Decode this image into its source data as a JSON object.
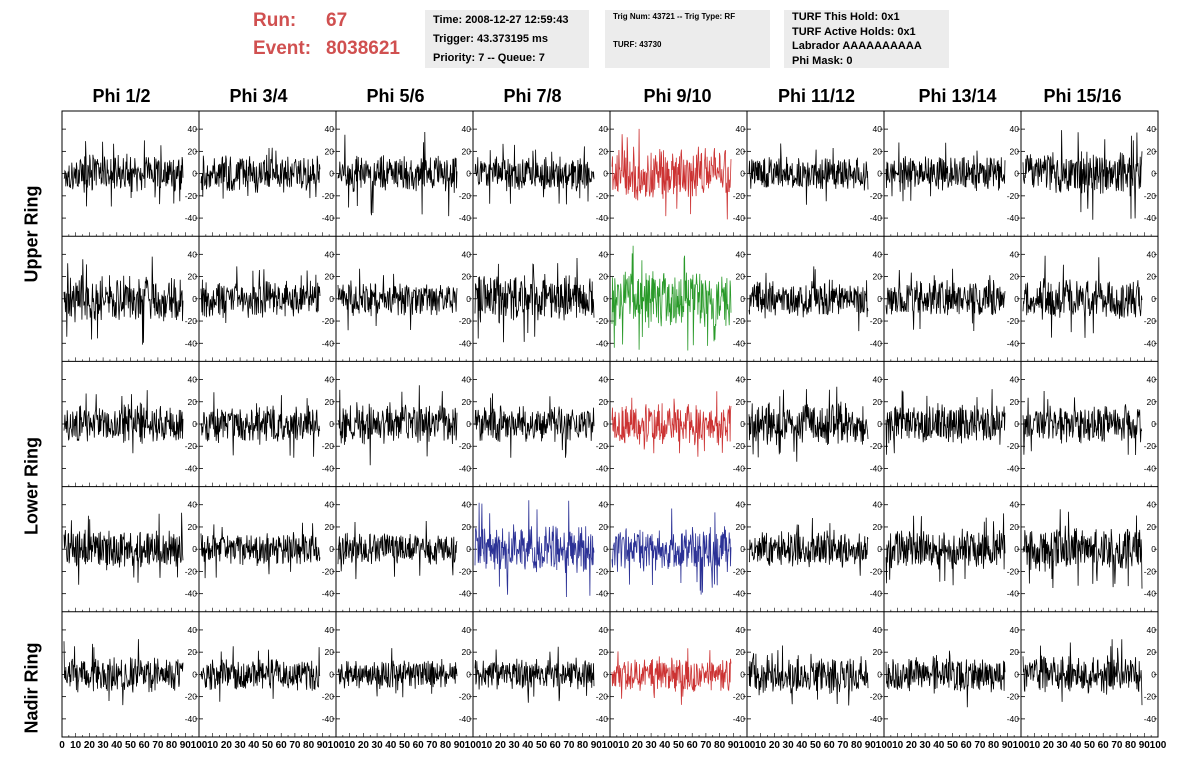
{
  "header": {
    "run_label": "Run:",
    "run_value": "67",
    "event_label": "Event:",
    "event_value": "8038621"
  },
  "info": {
    "time": "Time: 2008-12-27 12:59:43",
    "trigger": "Trigger: 43.373195 ms",
    "priority": "Priority: 7 -- Queue: 7",
    "trig": "Trig Num: 43721 -- Trig Type: RF",
    "turf": "TURF: 43730",
    "turf_hold": "TURF This Hold: 0x1",
    "turf_active": "TURF Active Holds: 0x1",
    "labrador": "Labrador AAAAAAAAAA",
    "phi_mask": "Phi Mask: 0"
  },
  "columns": [
    "Phi 1/2",
    "Phi 3/4",
    "Phi 5/6",
    "Phi 7/8",
    "Phi 9/10",
    "Phi 11/12",
    "Phi 13/14",
    "Phi 15/16"
  ],
  "rows": [
    "Upper Ring",
    "Upper Ring",
    "Lower Ring",
    "Lower Ring",
    "Nadir Ring"
  ],
  "ring_labels": [
    "Upper Ring",
    "Lower Ring",
    "Nadir Ring"
  ],
  "colors": {
    "default": "#000000",
    "red": "#cc3333",
    "green": "#2a9a2a",
    "blue": "#2c3296"
  },
  "chart_data": {
    "type": "line",
    "xlim": [
      0,
      100
    ],
    "ylim": [
      -50,
      50
    ],
    "x_ticks": [
      0,
      10,
      20,
      30,
      40,
      50,
      60,
      70,
      80,
      90,
      100
    ],
    "y_ticks": [
      -40,
      -20,
      0,
      20,
      40
    ],
    "x_tick_labels": [
      "0",
      "10",
      "20",
      "30",
      "40",
      "50",
      "60",
      "70",
      "80",
      "90",
      "100"
    ],
    "y_tick_labels": [
      "-40",
      "-20",
      "0",
      "20",
      "40"
    ],
    "samples": 260,
    "panels": [
      {
        "row": 0,
        "col": 0,
        "color": "default",
        "amplitude": 14,
        "max": 30
      },
      {
        "row": 0,
        "col": 1,
        "color": "default",
        "amplitude": 14,
        "max": 28
      },
      {
        "row": 0,
        "col": 2,
        "color": "default",
        "amplitude": 14,
        "max": 40
      },
      {
        "row": 0,
        "col": 3,
        "color": "default",
        "amplitude": 13,
        "max": 28
      },
      {
        "row": 0,
        "col": 4,
        "color": "red",
        "amplitude": 20,
        "max": 42
      },
      {
        "row": 0,
        "col": 5,
        "color": "default",
        "amplitude": 13,
        "max": 30
      },
      {
        "row": 0,
        "col": 6,
        "color": "default",
        "amplitude": 13,
        "max": 28
      },
      {
        "row": 0,
        "col": 7,
        "color": "default",
        "amplitude": 16,
        "max": 42
      },
      {
        "row": 1,
        "col": 0,
        "color": "default",
        "amplitude": 18,
        "max": 42
      },
      {
        "row": 1,
        "col": 1,
        "color": "default",
        "amplitude": 14,
        "max": 30
      },
      {
        "row": 1,
        "col": 2,
        "color": "default",
        "amplitude": 13,
        "max": 30
      },
      {
        "row": 1,
        "col": 3,
        "color": "default",
        "amplitude": 18,
        "max": 42
      },
      {
        "row": 1,
        "col": 4,
        "color": "green",
        "amplitude": 22,
        "max": 48
      },
      {
        "row": 1,
        "col": 5,
        "color": "default",
        "amplitude": 14,
        "max": 32
      },
      {
        "row": 1,
        "col": 6,
        "color": "default",
        "amplitude": 14,
        "max": 30
      },
      {
        "row": 1,
        "col": 7,
        "color": "default",
        "amplitude": 16,
        "max": 40
      },
      {
        "row": 2,
        "col": 0,
        "color": "default",
        "amplitude": 15,
        "max": 32
      },
      {
        "row": 2,
        "col": 1,
        "color": "default",
        "amplitude": 15,
        "max": 32
      },
      {
        "row": 2,
        "col": 2,
        "color": "default",
        "amplitude": 16,
        "max": 40
      },
      {
        "row": 2,
        "col": 3,
        "color": "default",
        "amplitude": 14,
        "max": 32
      },
      {
        "row": 2,
        "col": 4,
        "color": "red",
        "amplitude": 15,
        "max": 32
      },
      {
        "row": 2,
        "col": 5,
        "color": "default",
        "amplitude": 16,
        "max": 34
      },
      {
        "row": 2,
        "col": 6,
        "color": "default",
        "amplitude": 15,
        "max": 32
      },
      {
        "row": 2,
        "col": 7,
        "color": "default",
        "amplitude": 14,
        "max": 30
      },
      {
        "row": 3,
        "col": 0,
        "color": "default",
        "amplitude": 15,
        "max": 36
      },
      {
        "row": 3,
        "col": 1,
        "color": "default",
        "amplitude": 12,
        "max": 26
      },
      {
        "row": 3,
        "col": 2,
        "color": "default",
        "amplitude": 12,
        "max": 28
      },
      {
        "row": 3,
        "col": 3,
        "color": "blue",
        "amplitude": 18,
        "max": 44
      },
      {
        "row": 3,
        "col": 4,
        "color": "blue",
        "amplitude": 18,
        "max": 42
      },
      {
        "row": 3,
        "col": 5,
        "color": "default",
        "amplitude": 14,
        "max": 30
      },
      {
        "row": 3,
        "col": 6,
        "color": "default",
        "amplitude": 15,
        "max": 34
      },
      {
        "row": 3,
        "col": 7,
        "color": "default",
        "amplitude": 17,
        "max": 38
      },
      {
        "row": 4,
        "col": 0,
        "color": "default",
        "amplitude": 13,
        "max": 34
      },
      {
        "row": 4,
        "col": 1,
        "color": "default",
        "amplitude": 12,
        "max": 28
      },
      {
        "row": 4,
        "col": 2,
        "color": "default",
        "amplitude": 11,
        "max": 24
      },
      {
        "row": 4,
        "col": 3,
        "color": "default",
        "amplitude": 12,
        "max": 26
      },
      {
        "row": 4,
        "col": 4,
        "color": "red",
        "amplitude": 13,
        "max": 28
      },
      {
        "row": 4,
        "col": 5,
        "color": "default",
        "amplitude": 15,
        "max": 30
      },
      {
        "row": 4,
        "col": 6,
        "color": "default",
        "amplitude": 14,
        "max": 30
      },
      {
        "row": 4,
        "col": 7,
        "color": "default",
        "amplitude": 15,
        "max": 34
      }
    ]
  }
}
